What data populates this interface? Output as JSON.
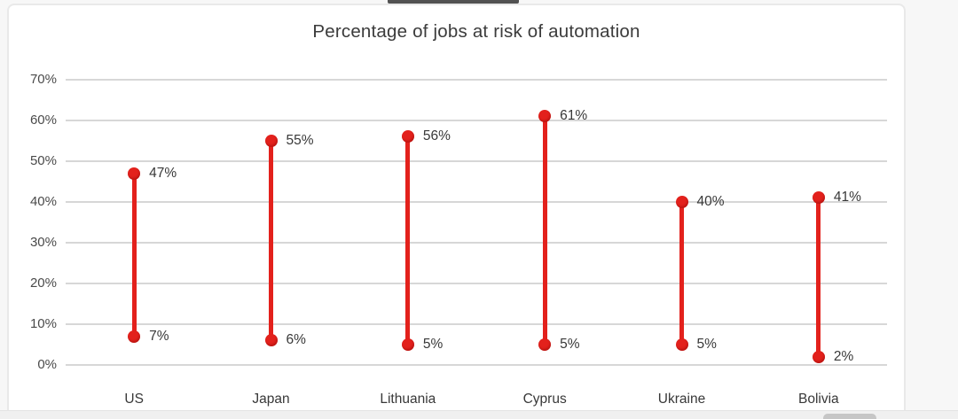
{
  "window": {
    "background": "#f7f7f7",
    "panel_background": "#ffffff",
    "panel_border": "#e9e9e9"
  },
  "chart_data": {
    "type": "scatter",
    "variant": "dumbbell-range",
    "title": "Percentage of jobs at risk of automation",
    "categories": [
      "US",
      "Japan",
      "Lithuania",
      "Cyprus",
      "Ukraine",
      "Bolivia"
    ],
    "series": [
      {
        "name": "high",
        "values": [
          47,
          55,
          56,
          61,
          40,
          41
        ],
        "labels": [
          "47%",
          "55%",
          "56%",
          "61%",
          "40%",
          "41%"
        ]
      },
      {
        "name": "low",
        "values": [
          7,
          6,
          5,
          5,
          5,
          2
        ],
        "labels": [
          "7%",
          "6%",
          "5%",
          "5%",
          "5%",
          "2%"
        ]
      }
    ],
    "xlabel": "",
    "ylabel": "",
    "ylim": [
      0,
      70
    ],
    "yticks": [
      {
        "value": 0,
        "label": "0%"
      },
      {
        "value": 10,
        "label": "10%"
      },
      {
        "value": 20,
        "label": "20%"
      },
      {
        "value": 30,
        "label": "30%"
      },
      {
        "value": 40,
        "label": "40%"
      },
      {
        "value": 50,
        "label": "50%"
      },
      {
        "value": 60,
        "label": "60%"
      },
      {
        "value": 70,
        "label": "70%"
      }
    ],
    "grid": true,
    "legend": "none",
    "colors": {
      "accent": "#e3211c",
      "gridline": "#d7d7d7",
      "title_text": "#3b3b3b",
      "axis_text": "#4a4a4a",
      "label_text": "#383838"
    }
  }
}
